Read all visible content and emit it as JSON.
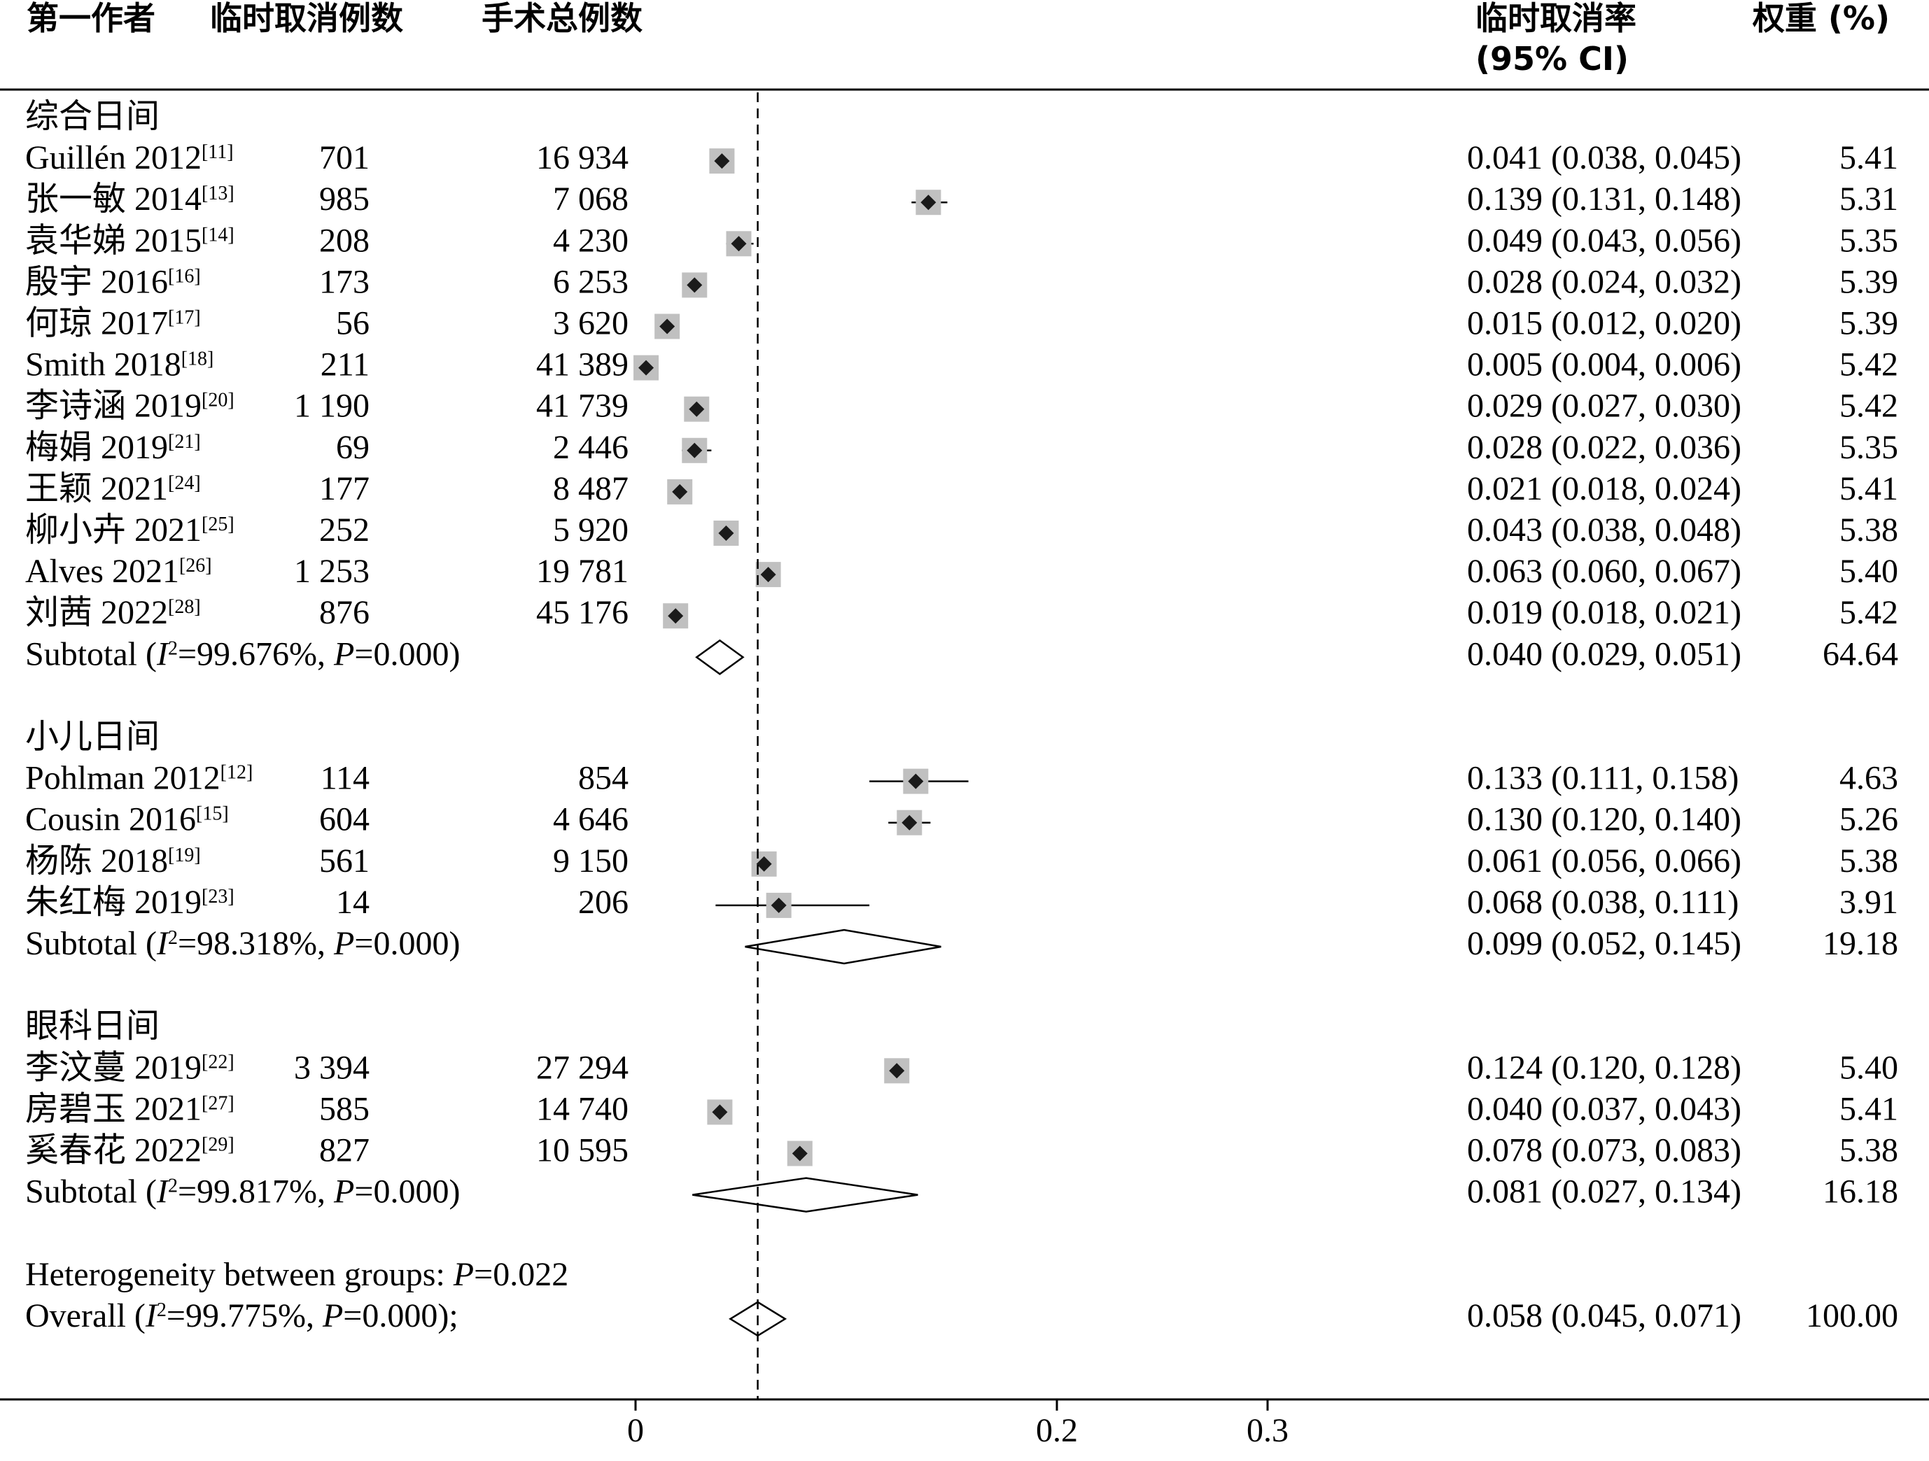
{
  "header": {
    "col_author": "第一作者",
    "col_cancel": "临时取消例数",
    "col_total": "手术总例数",
    "col_rate_line1": "临时取消率",
    "col_rate_line2": "(95% CI)",
    "col_weight": "权重 (%)"
  },
  "colors": {
    "square": "#c0c0c0",
    "marker": "#1a1a1a",
    "line": "#000000"
  },
  "chart_data": {
    "type": "forest",
    "x_ticks": [
      "0",
      "0.2",
      "0.3"
    ],
    "x_tick_values": [
      0,
      0.2,
      0.3
    ],
    "reference_line": 0.058,
    "groups": [
      {
        "name": "综合日间",
        "studies": [
          {
            "author": "Guillén 2012",
            "ref": "[11]",
            "cancel": "701",
            "total": "16 934",
            "est": 0.041,
            "lo": 0.038,
            "hi": 0.045,
            "ci_text": "0.041 (0.038, 0.045)",
            "weight": "5.41"
          },
          {
            "author": "张一敏 2014",
            "ref": "[13]",
            "cancel": "985",
            "total": "7 068",
            "est": 0.139,
            "lo": 0.131,
            "hi": 0.148,
            "ci_text": "0.139 (0.131, 0.148)",
            "weight": "5.31"
          },
          {
            "author": "袁华娣 2015",
            "ref": "[14]",
            "cancel": "208",
            "total": "4 230",
            "est": 0.049,
            "lo": 0.043,
            "hi": 0.056,
            "ci_text": "0.049 (0.043, 0.056)",
            "weight": "5.35"
          },
          {
            "author": "殷宇 2016",
            "ref": "[16]",
            "cancel": "173",
            "total": "6 253",
            "est": 0.028,
            "lo": 0.024,
            "hi": 0.032,
            "ci_text": "0.028 (0.024, 0.032)",
            "weight": "5.39"
          },
          {
            "author": "何琼 2017",
            "ref": "[17]",
            "cancel": "56",
            "total": "3 620",
            "est": 0.015,
            "lo": 0.012,
            "hi": 0.02,
            "ci_text": "0.015 (0.012, 0.020)",
            "weight": "5.39"
          },
          {
            "author": "Smith 2018",
            "ref": "[18]",
            "cancel": "211",
            "total": "41 389",
            "est": 0.005,
            "lo": 0.004,
            "hi": 0.006,
            "ci_text": "0.005 (0.004, 0.006)",
            "weight": "5.42"
          },
          {
            "author": "李诗涵 2019",
            "ref": "[20]",
            "cancel": "1 190",
            "total": "41 739",
            "est": 0.029,
            "lo": 0.027,
            "hi": 0.03,
            "ci_text": "0.029 (0.027, 0.030)",
            "weight": "5.42"
          },
          {
            "author": "梅娟 2019",
            "ref": "[21]",
            "cancel": "69",
            "total": "2 446",
            "est": 0.028,
            "lo": 0.022,
            "hi": 0.036,
            "ci_text": "0.028 (0.022, 0.036)",
            "weight": "5.35"
          },
          {
            "author": "王颖 2021",
            "ref": "[24]",
            "cancel": "177",
            "total": "8 487",
            "est": 0.021,
            "lo": 0.018,
            "hi": 0.024,
            "ci_text": "0.021 (0.018, 0.024)",
            "weight": "5.41"
          },
          {
            "author": "柳小卉 2021",
            "ref": "[25]",
            "cancel": "252",
            "total": "5 920",
            "est": 0.043,
            "lo": 0.038,
            "hi": 0.048,
            "ci_text": "0.043 (0.038, 0.048)",
            "weight": "5.38"
          },
          {
            "author": "Alves 2021",
            "ref": "[26]",
            "cancel": "1 253",
            "total": "19 781",
            "est": 0.063,
            "lo": 0.06,
            "hi": 0.067,
            "ci_text": "0.063 (0.060, 0.067)",
            "weight": "5.40"
          },
          {
            "author": "刘茜 2022",
            "ref": "[28]",
            "cancel": "876",
            "total": "45 176",
            "est": 0.019,
            "lo": 0.018,
            "hi": 0.021,
            "ci_text": "0.019 (0.018, 0.021)",
            "weight": "5.42"
          }
        ],
        "subtotal": {
          "prefix": "Subtotal",
          "i2": "99.676%",
          "p": "0.000",
          "est": 0.04,
          "lo": 0.029,
          "hi": 0.051,
          "ci_text": "0.040 (0.029, 0.051)",
          "weight": "64.64"
        }
      },
      {
        "name": "小儿日间",
        "studies": [
          {
            "author": "Pohlman 2012",
            "ref": "[12]",
            "cancel": "114",
            "total": "854",
            "est": 0.133,
            "lo": 0.111,
            "hi": 0.158,
            "ci_text": "0.133 (0.111, 0.158)",
            "weight": "4.63"
          },
          {
            "author": "Cousin 2016",
            "ref": "[15]",
            "cancel": "604",
            "total": "4 646",
            "est": 0.13,
            "lo": 0.12,
            "hi": 0.14,
            "ci_text": "0.130 (0.120, 0.140)",
            "weight": "5.26"
          },
          {
            "author": "杨陈 2018",
            "ref": "[19]",
            "cancel": "561",
            "total": "9 150",
            "est": 0.061,
            "lo": 0.056,
            "hi": 0.066,
            "ci_text": "0.061 (0.056, 0.066)",
            "weight": "5.38"
          },
          {
            "author": "朱红梅 2019",
            "ref": "[23]",
            "cancel": "14",
            "total": "206",
            "est": 0.068,
            "lo": 0.038,
            "hi": 0.111,
            "ci_text": "0.068 (0.038, 0.111)",
            "weight": "3.91"
          }
        ],
        "subtotal": {
          "prefix": "Subtotal",
          "i2": "98.318%",
          "p": "0.000",
          "est": 0.099,
          "lo": 0.052,
          "hi": 0.145,
          "ci_text": "0.099 (0.052, 0.145)",
          "weight": "19.18"
        }
      },
      {
        "name": "眼科日间",
        "studies": [
          {
            "author": "李汶蔓 2019",
            "ref": "[22]",
            "cancel": "3 394",
            "total": "27 294",
            "est": 0.124,
            "lo": 0.12,
            "hi": 0.128,
            "ci_text": "0.124 (0.120, 0.128)",
            "weight": "5.40"
          },
          {
            "author": "房碧玉 2021",
            "ref": "[27]",
            "cancel": "585",
            "total": "14 740",
            "est": 0.04,
            "lo": 0.037,
            "hi": 0.043,
            "ci_text": "0.040 (0.037, 0.043)",
            "weight": "5.41"
          },
          {
            "author": "奚春花 2022",
            "ref": "[29]",
            "cancel": "827",
            "total": "10 595",
            "est": 0.078,
            "lo": 0.073,
            "hi": 0.083,
            "ci_text": "0.078 (0.073, 0.083)",
            "weight": "5.38"
          }
        ],
        "subtotal": {
          "prefix": "Subtotal",
          "i2": "99.817%",
          "p": "0.000",
          "est": 0.081,
          "lo": 0.027,
          "hi": 0.134,
          "ci_text": "0.081 (0.027, 0.134)",
          "weight": "16.18"
        }
      }
    ],
    "heterogeneity": {
      "text": "Heterogeneity between groups: ",
      "p": "0.022"
    },
    "overall": {
      "prefix": "Overall",
      "i2": "99.775%",
      "p": "0.000",
      "suffix": ";",
      "est": 0.058,
      "lo": 0.045,
      "hi": 0.071,
      "ci_text": "0.058 (0.045, 0.071)",
      "weight": "100.00"
    }
  }
}
